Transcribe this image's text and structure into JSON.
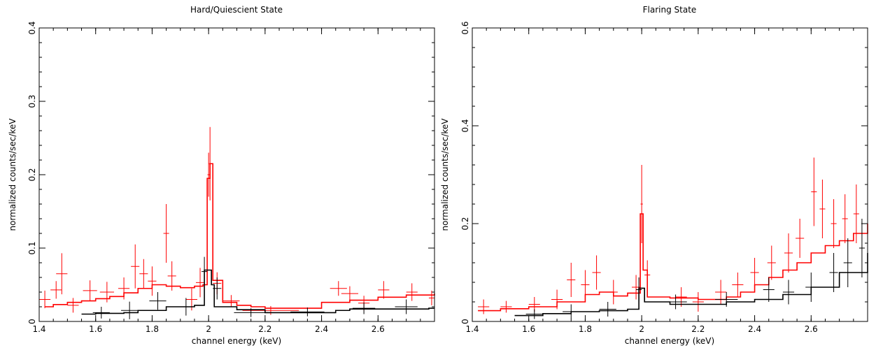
{
  "chart_data": [
    {
      "type": "line",
      "title": "Hard/Quiescient State",
      "xlabel": "channel energy (keV)",
      "ylabel": "normalized counts/sec/keV",
      "xlim": [
        1.4,
        2.8
      ],
      "ylim": [
        0,
        0.4
      ],
      "x_ticks": [
        1.4,
        1.6,
        1.8,
        2,
        2.2,
        2.4,
        2.6
      ],
      "x_tick_labels": [
        "1.4",
        "1.6",
        "1.8",
        "2",
        "2.2",
        "2.4",
        "2.6"
      ],
      "y_ticks": [
        0,
        0.1,
        0.2,
        0.3,
        0.4
      ],
      "y_tick_labels": [
        "0",
        "0.1",
        "0.2",
        "0.3",
        "0.4"
      ],
      "series": [
        {
          "color": "#ff0000",
          "model_steps": [
            [
              1.42,
              0.02
            ],
            [
              1.45,
              0.023
            ],
            [
              1.5,
              0.026
            ],
            [
              1.55,
              0.028
            ],
            [
              1.6,
              0.031
            ],
            [
              1.65,
              0.034
            ],
            [
              1.7,
              0.039
            ],
            [
              1.75,
              0.045
            ],
            [
              1.8,
              0.05
            ],
            [
              1.85,
              0.048
            ],
            [
              1.9,
              0.046
            ],
            [
              1.95,
              0.048
            ],
            [
              1.98,
              0.05
            ],
            [
              1.995,
              0.195
            ],
            [
              2.005,
              0.215
            ],
            [
              2.015,
              0.056
            ],
            [
              2.05,
              0.026
            ],
            [
              2.1,
              0.022
            ],
            [
              2.15,
              0.02
            ],
            [
              2.2,
              0.018
            ],
            [
              2.3,
              0.018
            ],
            [
              2.4,
              0.026
            ],
            [
              2.5,
              0.029
            ],
            [
              2.6,
              0.033
            ],
            [
              2.7,
              0.036
            ],
            [
              2.8,
              0.038
            ]
          ],
          "points": [
            {
              "x": 1.42,
              "y": 0.03,
              "dx": 0.02,
              "dy": 0.012
            },
            {
              "x": 1.46,
              "y": 0.043,
              "dx": 0.02,
              "dy": 0.012
            },
            {
              "x": 1.48,
              "y": 0.065,
              "dx": 0.02,
              "dy": 0.028
            },
            {
              "x": 1.52,
              "y": 0.022,
              "dx": 0.02,
              "dy": 0.01
            },
            {
              "x": 1.58,
              "y": 0.042,
              "dx": 0.025,
              "dy": 0.014
            },
            {
              "x": 1.64,
              "y": 0.04,
              "dx": 0.025,
              "dy": 0.014
            },
            {
              "x": 1.7,
              "y": 0.045,
              "dx": 0.02,
              "dy": 0.015
            },
            {
              "x": 1.74,
              "y": 0.075,
              "dx": 0.015,
              "dy": 0.03
            },
            {
              "x": 1.77,
              "y": 0.065,
              "dx": 0.015,
              "dy": 0.02
            },
            {
              "x": 1.8,
              "y": 0.055,
              "dx": 0.015,
              "dy": 0.02
            },
            {
              "x": 1.85,
              "y": 0.12,
              "dx": 0.01,
              "dy": 0.04
            },
            {
              "x": 1.87,
              "y": 0.062,
              "dx": 0.015,
              "dy": 0.02
            },
            {
              "x": 1.94,
              "y": 0.03,
              "dx": 0.02,
              "dy": 0.015
            },
            {
              "x": 1.97,
              "y": 0.053,
              "dx": 0.015,
              "dy": 0.02
            },
            {
              "x": 2.0,
              "y": 0.2,
              "dx": 0.004,
              "dy": 0.03
            },
            {
              "x": 2.005,
              "y": 0.215,
              "dx": 0.004,
              "dy": 0.05
            },
            {
              "x": 2.03,
              "y": 0.052,
              "dx": 0.015,
              "dy": 0.015
            },
            {
              "x": 2.08,
              "y": 0.028,
              "dx": 0.03,
              "dy": 0.008
            },
            {
              "x": 2.22,
              "y": 0.015,
              "dx": 0.1,
              "dy": 0.006
            },
            {
              "x": 2.46,
              "y": 0.045,
              "dx": 0.03,
              "dy": 0.01
            },
            {
              "x": 2.5,
              "y": 0.038,
              "dx": 0.03,
              "dy": 0.01
            },
            {
              "x": 2.55,
              "y": 0.025,
              "dx": 0.02,
              "dy": 0.01
            },
            {
              "x": 2.62,
              "y": 0.043,
              "dx": 0.02,
              "dy": 0.012
            },
            {
              "x": 2.72,
              "y": 0.04,
              "dx": 0.02,
              "dy": 0.012
            },
            {
              "x": 2.79,
              "y": 0.032,
              "dx": 0.01,
              "dy": 0.01
            }
          ]
        },
        {
          "color": "#000000",
          "model_steps": [
            [
              1.55,
              0.01
            ],
            [
              1.6,
              0.011
            ],
            [
              1.7,
              0.012
            ],
            [
              1.75,
              0.015
            ],
            [
              1.85,
              0.02
            ],
            [
              1.95,
              0.022
            ],
            [
              1.985,
              0.07
            ],
            [
              2.01,
              0.05
            ],
            [
              2.02,
              0.02
            ],
            [
              2.1,
              0.016
            ],
            [
              2.2,
              0.012
            ],
            [
              2.4,
              0.012
            ],
            [
              2.45,
              0.015
            ],
            [
              2.5,
              0.017
            ],
            [
              2.6,
              0.017
            ],
            [
              2.78,
              0.018
            ]
          ],
          "points": [
            {
              "x": 1.62,
              "y": 0.012,
              "dx": 0.03,
              "dy": 0.008
            },
            {
              "x": 1.72,
              "y": 0.015,
              "dx": 0.03,
              "dy": 0.012
            },
            {
              "x": 1.82,
              "y": 0.028,
              "dx": 0.03,
              "dy": 0.012
            },
            {
              "x": 1.92,
              "y": 0.02,
              "dx": 0.03,
              "dy": 0.012
            },
            {
              "x": 1.985,
              "y": 0.068,
              "dx": 0.01,
              "dy": 0.02
            },
            {
              "x": 2.03,
              "y": 0.045,
              "dx": 0.015,
              "dy": 0.015
            },
            {
              "x": 2.15,
              "y": 0.012,
              "dx": 0.06,
              "dy": 0.006
            },
            {
              "x": 2.35,
              "y": 0.013,
              "dx": 0.06,
              "dy": 0.006
            },
            {
              "x": 2.55,
              "y": 0.018,
              "dx": 0.04,
              "dy": 0.008
            },
            {
              "x": 2.7,
              "y": 0.02,
              "dx": 0.04,
              "dy": 0.01
            }
          ]
        }
      ]
    },
    {
      "type": "line",
      "title": "Flaring State",
      "xlabel": "channel energy (keV)",
      "ylabel": "normalized counts/sec/keV",
      "xlim": [
        1.4,
        2.8
      ],
      "ylim": [
        0,
        0.6
      ],
      "x_ticks": [
        1.4,
        1.6,
        1.8,
        2,
        2.2,
        2.4,
        2.6
      ],
      "x_tick_labels": [
        "1.4",
        "1.6",
        "1.8",
        "2",
        "2.2",
        "2.4",
        "2.6"
      ],
      "y_ticks": [
        0,
        0.2,
        0.4,
        0.6
      ],
      "y_tick_labels": [
        "0",
        "0.2",
        "0.4",
        "0.6"
      ],
      "series": [
        {
          "color": "#ff0000",
          "model_steps": [
            [
              1.42,
              0.022
            ],
            [
              1.5,
              0.026
            ],
            [
              1.6,
              0.03
            ],
            [
              1.7,
              0.04
            ],
            [
              1.8,
              0.055
            ],
            [
              1.85,
              0.06
            ],
            [
              1.9,
              0.052
            ],
            [
              1.95,
              0.058
            ],
            [
              1.995,
              0.22
            ],
            [
              2.005,
              0.105
            ],
            [
              2.02,
              0.05
            ],
            [
              2.1,
              0.048
            ],
            [
              2.2,
              0.045
            ],
            [
              2.3,
              0.05
            ],
            [
              2.35,
              0.06
            ],
            [
              2.4,
              0.075
            ],
            [
              2.45,
              0.09
            ],
            [
              2.5,
              0.105
            ],
            [
              2.55,
              0.12
            ],
            [
              2.6,
              0.14
            ],
            [
              2.65,
              0.155
            ],
            [
              2.7,
              0.165
            ],
            [
              2.75,
              0.18
            ],
            [
              2.8,
              0.2
            ]
          ],
          "points": [
            {
              "x": 1.44,
              "y": 0.03,
              "dx": 0.02,
              "dy": 0.015
            },
            {
              "x": 1.52,
              "y": 0.03,
              "dx": 0.02,
              "dy": 0.012
            },
            {
              "x": 1.62,
              "y": 0.035,
              "dx": 0.02,
              "dy": 0.015
            },
            {
              "x": 1.7,
              "y": 0.045,
              "dx": 0.02,
              "dy": 0.02
            },
            {
              "x": 1.75,
              "y": 0.085,
              "dx": 0.015,
              "dy": 0.035
            },
            {
              "x": 1.8,
              "y": 0.075,
              "dx": 0.015,
              "dy": 0.03
            },
            {
              "x": 1.84,
              "y": 0.1,
              "dx": 0.015,
              "dy": 0.035
            },
            {
              "x": 1.9,
              "y": 0.06,
              "dx": 0.015,
              "dy": 0.025
            },
            {
              "x": 1.98,
              "y": 0.07,
              "dx": 0.015,
              "dy": 0.025
            },
            {
              "x": 2.0,
              "y": 0.24,
              "dx": 0.004,
              "dy": 0.08
            },
            {
              "x": 2.02,
              "y": 0.095,
              "dx": 0.01,
              "dy": 0.03
            },
            {
              "x": 2.14,
              "y": 0.05,
              "dx": 0.02,
              "dy": 0.02
            },
            {
              "x": 2.2,
              "y": 0.04,
              "dx": 0.02,
              "dy": 0.02
            },
            {
              "x": 2.28,
              "y": 0.06,
              "dx": 0.02,
              "dy": 0.025
            },
            {
              "x": 2.34,
              "y": 0.075,
              "dx": 0.02,
              "dy": 0.025
            },
            {
              "x": 2.4,
              "y": 0.1,
              "dx": 0.015,
              "dy": 0.03
            },
            {
              "x": 2.46,
              "y": 0.12,
              "dx": 0.015,
              "dy": 0.035
            },
            {
              "x": 2.52,
              "y": 0.14,
              "dx": 0.015,
              "dy": 0.04
            },
            {
              "x": 2.56,
              "y": 0.17,
              "dx": 0.015,
              "dy": 0.04
            },
            {
              "x": 2.61,
              "y": 0.265,
              "dx": 0.01,
              "dy": 0.07
            },
            {
              "x": 2.64,
              "y": 0.23,
              "dx": 0.01,
              "dy": 0.06
            },
            {
              "x": 2.68,
              "y": 0.2,
              "dx": 0.01,
              "dy": 0.05
            },
            {
              "x": 2.72,
              "y": 0.21,
              "dx": 0.01,
              "dy": 0.05
            },
            {
              "x": 2.76,
              "y": 0.22,
              "dx": 0.01,
              "dy": 0.06
            }
          ]
        },
        {
          "color": "#000000",
          "model_steps": [
            [
              1.55,
              0.012
            ],
            [
              1.65,
              0.016
            ],
            [
              1.75,
              0.02
            ],
            [
              1.85,
              0.022
            ],
            [
              1.95,
              0.025
            ],
            [
              1.99,
              0.068
            ],
            [
              2.01,
              0.04
            ],
            [
              2.1,
              0.035
            ],
            [
              2.2,
              0.035
            ],
            [
              2.3,
              0.04
            ],
            [
              2.4,
              0.045
            ],
            [
              2.5,
              0.055
            ],
            [
              2.6,
              0.07
            ],
            [
              2.7,
              0.1
            ],
            [
              2.8,
              0.14
            ]
          ],
          "points": [
            {
              "x": 1.62,
              "y": 0.015,
              "dx": 0.03,
              "dy": 0.01
            },
            {
              "x": 1.75,
              "y": 0.02,
              "dx": 0.03,
              "dy": 0.015
            },
            {
              "x": 1.88,
              "y": 0.025,
              "dx": 0.03,
              "dy": 0.015
            },
            {
              "x": 1.99,
              "y": 0.065,
              "dx": 0.01,
              "dy": 0.025
            },
            {
              "x": 2.12,
              "y": 0.04,
              "dx": 0.04,
              "dy": 0.015
            },
            {
              "x": 2.3,
              "y": 0.045,
              "dx": 0.04,
              "dy": 0.015
            },
            {
              "x": 2.45,
              "y": 0.065,
              "dx": 0.02,
              "dy": 0.025
            },
            {
              "x": 2.52,
              "y": 0.06,
              "dx": 0.02,
              "dy": 0.025
            },
            {
              "x": 2.6,
              "y": 0.07,
              "dx": 0.02,
              "dy": 0.03
            },
            {
              "x": 2.68,
              "y": 0.1,
              "dx": 0.015,
              "dy": 0.04
            },
            {
              "x": 2.73,
              "y": 0.12,
              "dx": 0.015,
              "dy": 0.05
            },
            {
              "x": 2.78,
              "y": 0.15,
              "dx": 0.01,
              "dy": 0.06
            }
          ]
        }
      ]
    }
  ]
}
